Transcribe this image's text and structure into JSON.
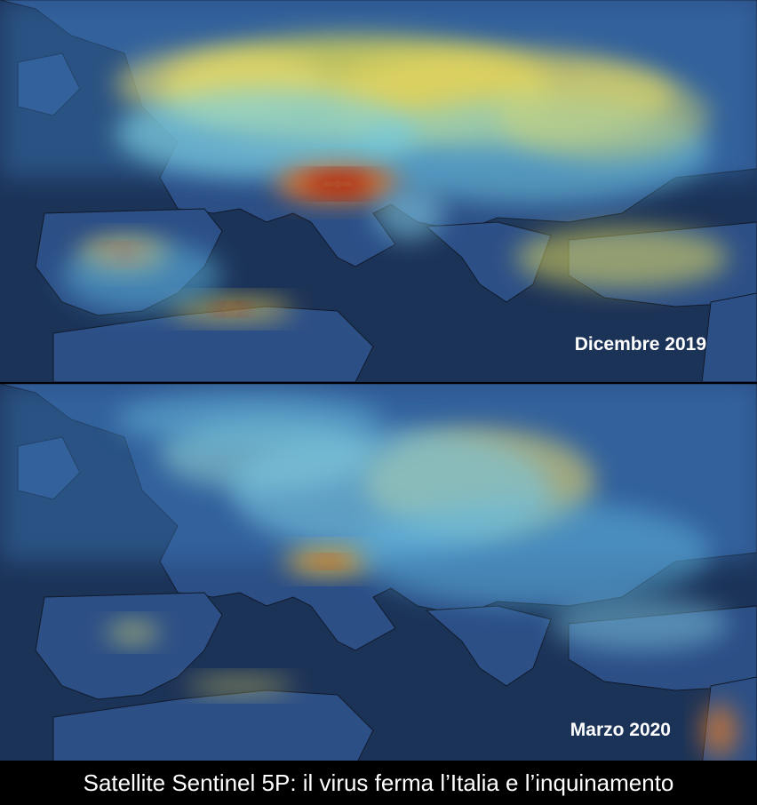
{
  "panels": [
    {
      "label": "Dicembre 2019"
    },
    {
      "label": "Marzo 2020"
    }
  ],
  "caption": "Satellite Sentinel 5P: il virus ferma l’Italia e l’inquinamento"
}
